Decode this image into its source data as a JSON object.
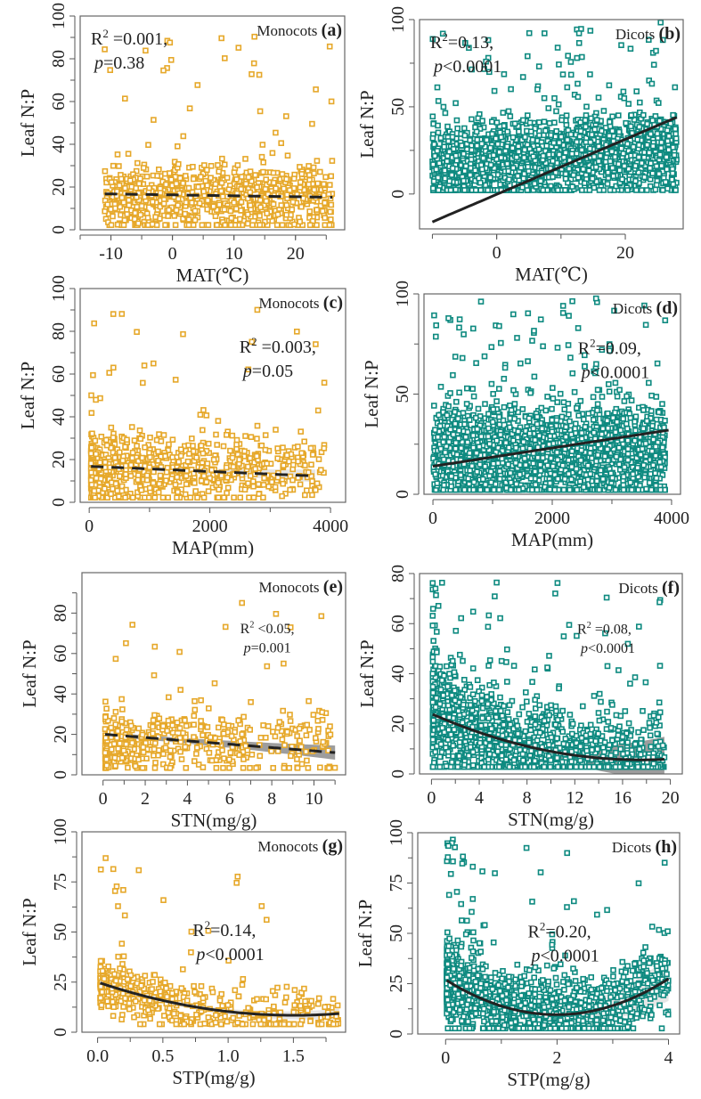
{
  "figure": {
    "colors": {
      "monocots": "#E6A82A",
      "dicots": "#0E8A80",
      "fit": "#222222",
      "band": "#9a9a9a"
    }
  },
  "chart_data": [
    {
      "panel": "a",
      "type": "scatter",
      "group": "Monocots",
      "label": "(a)",
      "xlabel": "MAT(℃)",
      "ylabel": "Leaf N:P",
      "xlim": [
        -15,
        28
      ],
      "ylim": [
        0,
        100
      ],
      "xticks": [
        -10,
        0,
        10,
        20
      ],
      "xminor": [
        -15,
        -10,
        -5,
        0,
        5,
        10,
        15,
        20,
        25
      ],
      "yticks": [
        0,
        20,
        40,
        60,
        80,
        100
      ],
      "yminor": [
        10,
        30,
        50,
        70,
        90
      ],
      "stats": {
        "r2": "R² =0.001,",
        "p": "p=0.38"
      },
      "stats_pos": "top-left",
      "fit": {
        "kind": "linear",
        "style": "dashed",
        "x": [
          -11,
          26
        ],
        "y": [
          16.8,
          15.2
        ],
        "band": false
      },
      "points_summary": {
        "n": 900,
        "x_range": [
          -11,
          26
        ],
        "y_median": 15,
        "y_spread": [
          2,
          35
        ],
        "outliers_y_max": 92
      }
    },
    {
      "panel": "b",
      "type": "scatter",
      "group": "Dicots",
      "label": "(b)",
      "xlabel": "MAT(℃)",
      "ylabel": "Leaf N:P",
      "xlim": [
        -12,
        29
      ],
      "ylim": [
        -20,
        100
      ],
      "xticks": [
        0,
        20
      ],
      "xminor": [
        -10,
        0,
        10,
        20
      ],
      "yticks": [
        0,
        50,
        100
      ],
      "yminor": [
        25,
        75
      ],
      "stats": {
        "r2": "R²=0.13,",
        "p": "p<0.0001"
      },
      "stats_pos": "top-left",
      "fit": {
        "kind": "linear",
        "style": "solid",
        "x": [
          -10,
          28
        ],
        "y": [
          -16,
          44
        ],
        "band": false
      },
      "points_summary": {
        "n": 2200,
        "x_range": [
          -10,
          28
        ],
        "y_median": 18,
        "y_spread": [
          2,
          45
        ],
        "outliers_y_max": 99
      }
    },
    {
      "panel": "c",
      "type": "scatter",
      "group": "Monocots",
      "label": "(c)",
      "xlabel": "MAP(mm)",
      "ylabel": "Leaf N:P",
      "xlim": [
        -150,
        4250
      ],
      "ylim": [
        0,
        100
      ],
      "xticks": [
        0,
        2000,
        4000
      ],
      "xminor": [
        1000,
        3000
      ],
      "yticks": [
        0,
        20,
        40,
        60,
        80,
        100
      ],
      "yminor": [
        10,
        30,
        50,
        70,
        90
      ],
      "stats": {
        "r2": "R² =0.003,",
        "p": "p=0.05"
      },
      "stats_pos": "mid-right",
      "fit": {
        "kind": "linear",
        "style": "dashed",
        "x": [
          30,
          3750
        ],
        "y": [
          16.8,
          12.3
        ],
        "band": true,
        "band_halfwidth": [
          0.8,
          3
        ]
      },
      "points_summary": {
        "n": 800,
        "x_range": [
          30,
          3900
        ],
        "y_median": 15,
        "y_spread": [
          2,
          35
        ],
        "outliers_y_max": 92
      }
    },
    {
      "panel": "d",
      "type": "scatter",
      "group": "Dicots",
      "label": "(d)",
      "xlabel": "MAP(mm)",
      "ylabel": "Leaf N:P",
      "xlim": [
        -150,
        4150
      ],
      "ylim": [
        0,
        100
      ],
      "xticks": [
        0,
        2000,
        4000
      ],
      "xminor": [
        1000,
        3000
      ],
      "yticks": [
        0,
        50,
        100
      ],
      "yminor": [
        25,
        75
      ],
      "stats": {
        "r2": "R²=0.09,",
        "p": "p<0.0001"
      },
      "stats_pos": "mid-right",
      "fit": {
        "kind": "linear",
        "style": "solid",
        "x": [
          0,
          3950
        ],
        "y": [
          14,
          32
        ],
        "band": false
      },
      "points_summary": {
        "n": 2200,
        "x_range": [
          0,
          3900
        ],
        "y_median": 20,
        "y_spread": [
          2,
          50
        ],
        "outliers_y_max": 99
      }
    },
    {
      "panel": "e",
      "type": "scatter",
      "group": "Monocots",
      "label": "(e)",
      "xlabel": "STN(mg/g)",
      "ylabel": "Leaf N:P",
      "xlim": [
        -1,
        11.5
      ],
      "ylim": [
        0,
        100
      ],
      "xticks": [
        0,
        2,
        4,
        6,
        8,
        10
      ],
      "xminor": [
        1,
        3,
        5,
        7,
        9,
        11
      ],
      "yticks": [
        0,
        20,
        40,
        60,
        80
      ],
      "yminor": [
        10,
        30,
        50,
        70,
        90
      ],
      "stats": {
        "r2": "R² <0.05,",
        "p": "p=0.001"
      },
      "stats_pos": "mid-right",
      "fit": {
        "kind": "linear",
        "style": "dashed",
        "x": [
          0.1,
          11
        ],
        "y": [
          20,
          11
        ],
        "band": true,
        "band_halfwidth": [
          1,
          3.5
        ],
        "band_color": "dark"
      },
      "points_summary": {
        "n": 450,
        "x_range": [
          0.1,
          11
        ],
        "y_median": 16,
        "y_spread": [
          4,
          35
        ],
        "outliers_y_max": 90
      }
    },
    {
      "panel": "f",
      "type": "scatter",
      "group": "Dicots",
      "label": "(f)",
      "xlabel": "STN(mg/g)",
      "ylabel": "Leaf N:P",
      "xlim": [
        -1,
        21
      ],
      "ylim": [
        0,
        80
      ],
      "xticks": [
        0,
        4,
        8,
        12,
        16,
        20
      ],
      "xminor": [
        2,
        6,
        10,
        14,
        18
      ],
      "yticks": [
        0,
        20,
        40,
        60,
        80
      ],
      "yminor": [
        10,
        30,
        50,
        70
      ],
      "stats": {
        "r2": "R² =0.08,",
        "p": "p<0.0001"
      },
      "stats_pos": "mid-right",
      "fit": {
        "kind": "quadratic",
        "style": "solid",
        "x": [
          0.1,
          19.5
        ],
        "coef": [
          24,
          -2.1,
          0.06
        ],
        "band": true,
        "band_halfwidth": [
          0.8,
          9
        ],
        "band_color": "dark"
      },
      "points_summary": {
        "n": 1600,
        "x_range": [
          0.1,
          19.5
        ],
        "y_median": 18,
        "y_spread": [
          3,
          40
        ],
        "outliers_y_max": 78
      }
    },
    {
      "panel": "g",
      "type": "scatter",
      "group": "Monocots",
      "label": "(g)",
      "xlabel": "STP(mg/g)",
      "ylabel": "Leaf N:P",
      "xlim": [
        -0.12,
        1.9
      ],
      "ylim": [
        0,
        100
      ],
      "xticks": [
        0.0,
        0.5,
        1.0,
        1.5
      ],
      "xtick_labels": [
        "0.0",
        "0.5",
        "1.0",
        "1.5"
      ],
      "xminor": [
        0.25,
        0.75,
        1.25,
        1.75
      ],
      "yticks": [
        0,
        25,
        50,
        75,
        100
      ],
      "yminor": [
        12.5,
        37.5,
        62.5,
        87.5
      ],
      "stats": {
        "r2": "R²=0.14,",
        "p": "p<0.0001"
      },
      "stats_pos": "center",
      "fit": {
        "kind": "quadratic",
        "style": "solid",
        "x": [
          0.02,
          1.85
        ],
        "coef": [
          25,
          -22,
          7.3
        ],
        "band": true,
        "band_halfwidth": [
          1,
          2.5
        ]
      },
      "points_summary": {
        "n": 500,
        "x_range": [
          0.02,
          1.85
        ],
        "y_median": 16,
        "y_spread": [
          5,
          30
        ],
        "outliers_y_max": 90
      }
    },
    {
      "panel": "h",
      "type": "scatter",
      "group": "Dicots",
      "label": "(h)",
      "xlabel": "STP(mg/g)",
      "ylabel": "Leaf N:P",
      "xlim": [
        -0.5,
        4.2
      ],
      "ylim": [
        0,
        100
      ],
      "xticks": [
        0,
        2,
        4
      ],
      "xminor": [
        1,
        3
      ],
      "yticks": [
        0,
        25,
        50,
        75,
        100
      ],
      "yminor": [
        12.5,
        37.5,
        62.5,
        87.5
      ],
      "stats": {
        "r2": "R²=0.20,",
        "p": "p<0.0001"
      },
      "stats_pos": "center",
      "fit": {
        "kind": "quadratic",
        "style": "solid",
        "x": [
          0.02,
          4.0
        ],
        "coef": [
          27,
          -17.5,
          4.4
        ],
        "band": true,
        "band_halfwidth": [
          1,
          11
        ]
      },
      "points_summary": {
        "n": 1500,
        "x_range": [
          0.02,
          4.0
        ],
        "y_median": 18,
        "y_spread": [
          3,
          40
        ],
        "outliers_y_max": 97
      }
    }
  ]
}
